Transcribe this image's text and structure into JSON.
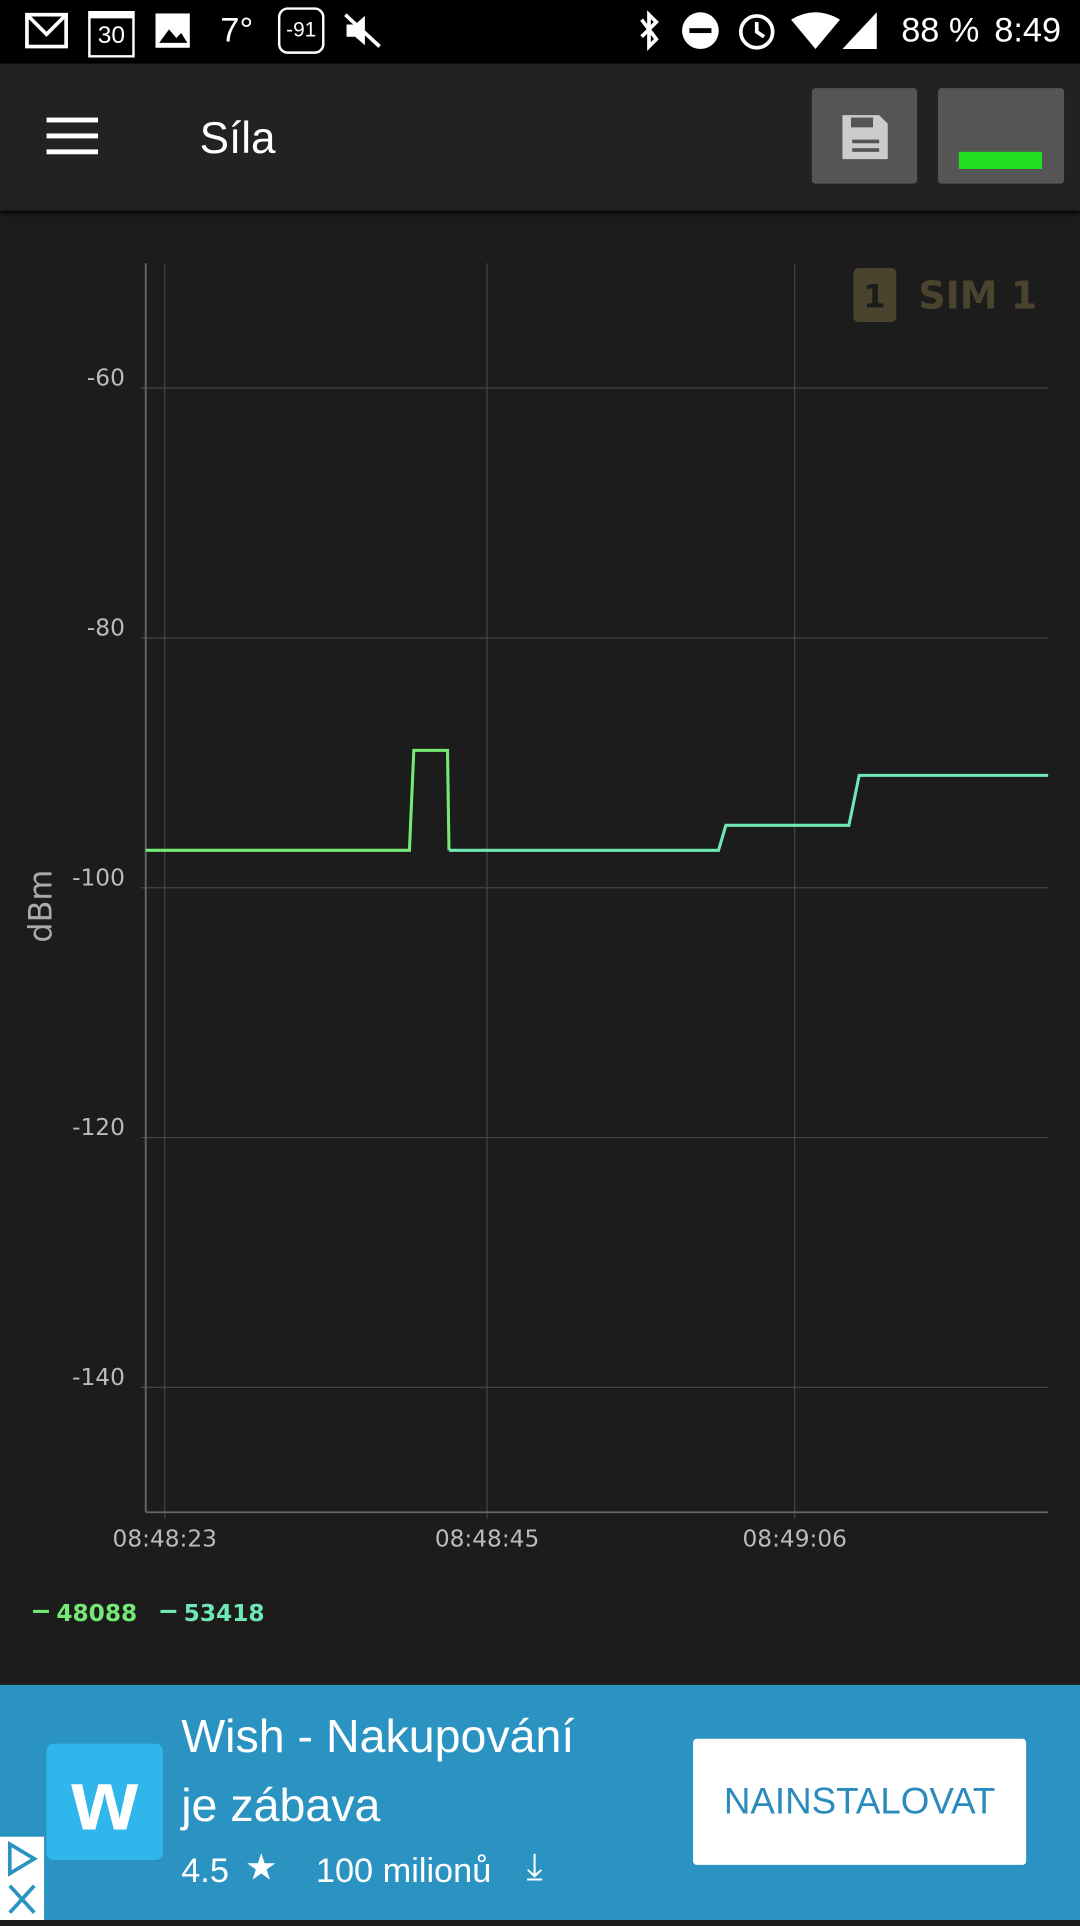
{
  "status_bar": {
    "calendar": "30",
    "temperature": "7°",
    "signal_badge": "-91",
    "battery": "88 %",
    "time": "8:49"
  },
  "toolbar": {
    "title": "Síla"
  },
  "sim_badge": {
    "number": "1",
    "label": "SIM 1"
  },
  "chart_data": {
    "type": "line",
    "ylabel": "dBm",
    "ylim": [
      -150,
      -50
    ],
    "yticks": [
      -60,
      -80,
      -100,
      -120,
      -140
    ],
    "xlim": [
      21.7,
      83.3
    ],
    "xticks": [
      {
        "value": 23,
        "label": "08:48:23"
      },
      {
        "value": 45,
        "label": "08:48:45"
      },
      {
        "value": 66,
        "label": "08:49:06"
      }
    ],
    "grid": true,
    "series": [
      {
        "name": "48088",
        "color": "#74ea74",
        "x": [
          21.7,
          39.7,
          40.0,
          42.3,
          42.4
        ],
        "values": [
          -97,
          -97,
          -89,
          -89,
          -97
        ]
      },
      {
        "name": "53418",
        "color": "#6fe8b6",
        "x": [
          42.4,
          60.8,
          61.3,
          69.7,
          70.4,
          83.3
        ],
        "values": [
          -97,
          -97,
          -95,
          -95,
          -91,
          -91
        ]
      }
    ]
  },
  "ad": {
    "title_line1": "Wish - Nakupování",
    "title_line2": "je zábava",
    "rating": "4.5",
    "downloads": "100 milionů",
    "button": "NAINSTALOVAT"
  }
}
